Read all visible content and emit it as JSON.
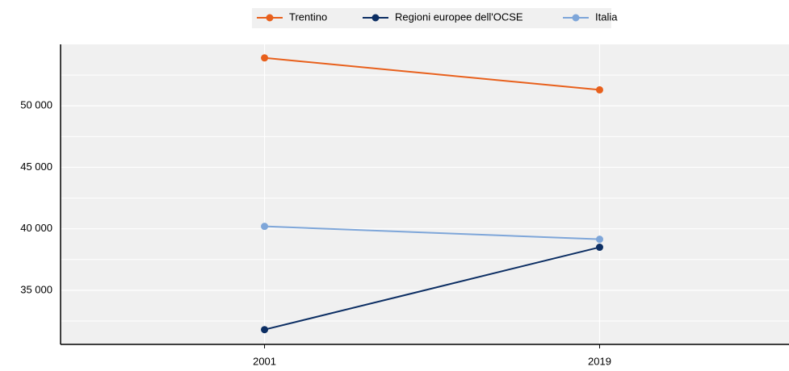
{
  "chart_data": {
    "type": "line",
    "categories": [
      "2001",
      "2019"
    ],
    "series": [
      {
        "name": "Trentino",
        "color": "#e8601c",
        "values": [
          53900,
          51300
        ]
      },
      {
        "name": "Regioni europee dell'OCSE",
        "color": "#0c2e63",
        "values": [
          31800,
          38500
        ]
      },
      {
        "name": "Italia",
        "color": "#7ea6d9",
        "values": [
          40200,
          39150
        ]
      }
    ],
    "ylim": [
      30600,
      55000
    ],
    "yticks": [
      {
        "value": 35000,
        "label": "35 000"
      },
      {
        "value": 40000,
        "label": "40 000"
      },
      {
        "value": 45000,
        "label": "45 000"
      },
      {
        "value": 50000,
        "label": "50 000"
      }
    ],
    "minor_yticks": [
      32500,
      37500,
      42500,
      47500,
      52500
    ],
    "grid": true,
    "legend": "top"
  }
}
